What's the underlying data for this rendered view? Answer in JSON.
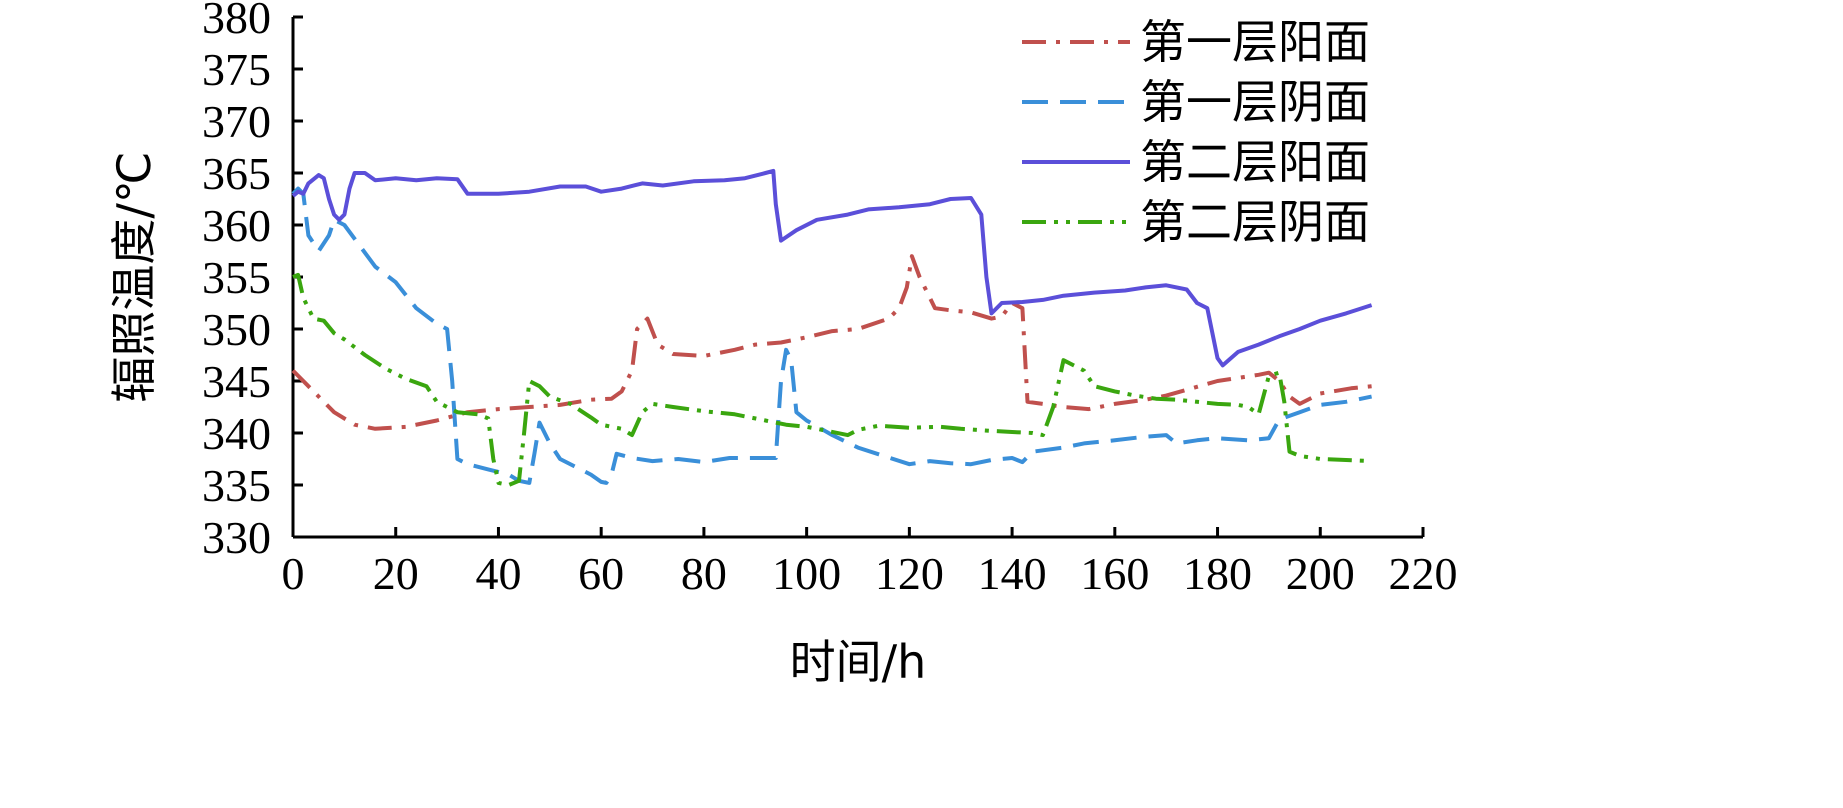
{
  "chart_data": {
    "type": "line",
    "title": "",
    "xlabel": "时间/h",
    "ylabel": "辐照温度/℃",
    "xlim": [
      0,
      220
    ],
    "ylim": [
      330,
      380
    ],
    "xticks": [
      0,
      20,
      40,
      60,
      80,
      100,
      120,
      140,
      160,
      180,
      200,
      220
    ],
    "yticks": [
      330,
      335,
      340,
      345,
      350,
      355,
      360,
      365,
      370,
      375,
      380
    ],
    "grid": false,
    "legend_position": "top-right",
    "series": [
      {
        "name": "第一层阳面",
        "color": "#c0504d",
        "dash": "dashdot",
        "points": [
          [
            0,
            346
          ],
          [
            2,
            345
          ],
          [
            5,
            343.5
          ],
          [
            8,
            342
          ],
          [
            12,
            340.8
          ],
          [
            16,
            340.4
          ],
          [
            22,
            340.6
          ],
          [
            28,
            341.2
          ],
          [
            34,
            342
          ],
          [
            40,
            342.3
          ],
          [
            46,
            342.5
          ],
          [
            52,
            342.7
          ],
          [
            58,
            343.2
          ],
          [
            62,
            343.3
          ],
          [
            64,
            344
          ],
          [
            66,
            346
          ],
          [
            67,
            350
          ],
          [
            69,
            351
          ],
          [
            71,
            348.5
          ],
          [
            74,
            347.6
          ],
          [
            80,
            347.4
          ],
          [
            86,
            348
          ],
          [
            90,
            348.5
          ],
          [
            95,
            348.7
          ],
          [
            100,
            349.2
          ],
          [
            105,
            349.8
          ],
          [
            110,
            350
          ],
          [
            116,
            351
          ],
          [
            118,
            352
          ],
          [
            119.5,
            354
          ],
          [
            120.5,
            357
          ],
          [
            122,
            355
          ],
          [
            125,
            352
          ],
          [
            128,
            351.8
          ],
          [
            132,
            351.6
          ],
          [
            136,
            351
          ],
          [
            138,
            351.2
          ],
          [
            140,
            352.5
          ],
          [
            142,
            352
          ],
          [
            143,
            343
          ],
          [
            146,
            342.8
          ],
          [
            150,
            342.5
          ],
          [
            155,
            342.3
          ],
          [
            160,
            342.8
          ],
          [
            166,
            343.2
          ],
          [
            170,
            343.6
          ],
          [
            175,
            344.3
          ],
          [
            180,
            345
          ],
          [
            184,
            345.3
          ],
          [
            188,
            345.6
          ],
          [
            190,
            345.8
          ],
          [
            192,
            345
          ],
          [
            194,
            343.5
          ],
          [
            196,
            342.8
          ],
          [
            200,
            343.8
          ],
          [
            206,
            344.3
          ],
          [
            210,
            344.5
          ]
        ]
      },
      {
        "name": "第一层阴面",
        "color": "#3a8fd9",
        "dash": "dashed",
        "points": [
          [
            0,
            363
          ],
          [
            1,
            363.5
          ],
          [
            2,
            363
          ],
          [
            3,
            359
          ],
          [
            5,
            357.5
          ],
          [
            7,
            359
          ],
          [
            8,
            360.5
          ],
          [
            10,
            360
          ],
          [
            13,
            358
          ],
          [
            16,
            356
          ],
          [
            20,
            354.5
          ],
          [
            24,
            352
          ],
          [
            28,
            350.5
          ],
          [
            30,
            350
          ],
          [
            31,
            345
          ],
          [
            32,
            337.5
          ],
          [
            34,
            337
          ],
          [
            38,
            336.5
          ],
          [
            42,
            336
          ],
          [
            44,
            335.4
          ],
          [
            46,
            335.2
          ],
          [
            47,
            338
          ],
          [
            48,
            341
          ],
          [
            50,
            339
          ],
          [
            52,
            337.5
          ],
          [
            56,
            336.5
          ],
          [
            58,
            336
          ],
          [
            60,
            335.3
          ],
          [
            61,
            335.2
          ],
          [
            62,
            336
          ],
          [
            63,
            338
          ],
          [
            66,
            337.6
          ],
          [
            70,
            337.3
          ],
          [
            75,
            337.5
          ],
          [
            80,
            337.2
          ],
          [
            85,
            337.6
          ],
          [
            90,
            337.6
          ],
          [
            94,
            337.6
          ],
          [
            95,
            345
          ],
          [
            96,
            348
          ],
          [
            97,
            347
          ],
          [
            98,
            342
          ],
          [
            100,
            341.2
          ],
          [
            105,
            339.8
          ],
          [
            110,
            338.6
          ],
          [
            115,
            337.8
          ],
          [
            120,
            337
          ],
          [
            124,
            337.3
          ],
          [
            128,
            337.1
          ],
          [
            132,
            337
          ],
          [
            136,
            337.4
          ],
          [
            140,
            337.6
          ],
          [
            142,
            337.2
          ],
          [
            144,
            338.2
          ],
          [
            150,
            338.6
          ],
          [
            154,
            339
          ],
          [
            160,
            339.3
          ],
          [
            165,
            339.6
          ],
          [
            170,
            339.8
          ],
          [
            172,
            339
          ],
          [
            176,
            339.3
          ],
          [
            180,
            339.5
          ],
          [
            186,
            339.3
          ],
          [
            190,
            339.5
          ],
          [
            192,
            341.3
          ],
          [
            196,
            342
          ],
          [
            200,
            342.7
          ],
          [
            205,
            343
          ],
          [
            210,
            343.5
          ]
        ]
      },
      {
        "name": "第二层阳面",
        "color": "#5b4fd9",
        "dash": "solid",
        "points": [
          [
            0,
            362.8
          ],
          [
            1,
            363.2
          ],
          [
            2,
            363
          ],
          [
            3,
            364
          ],
          [
            5,
            364.8
          ],
          [
            6,
            364.5
          ],
          [
            7,
            362.5
          ],
          [
            8,
            361
          ],
          [
            9,
            360.5
          ],
          [
            10,
            361
          ],
          [
            11,
            363.5
          ],
          [
            12,
            365
          ],
          [
            14,
            365
          ],
          [
            16,
            364.3
          ],
          [
            20,
            364.5
          ],
          [
            24,
            364.3
          ],
          [
            28,
            364.5
          ],
          [
            32,
            364.4
          ],
          [
            34,
            363
          ],
          [
            40,
            363
          ],
          [
            46,
            363.2
          ],
          [
            52,
            363.7
          ],
          [
            57,
            363.7
          ],
          [
            60,
            363.2
          ],
          [
            64,
            363.5
          ],
          [
            68,
            364
          ],
          [
            72,
            363.8
          ],
          [
            78,
            364.2
          ],
          [
            84,
            364.3
          ],
          [
            88,
            364.5
          ],
          [
            92,
            365
          ],
          [
            93.5,
            365.2
          ],
          [
            94,
            362
          ],
          [
            95,
            358.5
          ],
          [
            98,
            359.5
          ],
          [
            102,
            360.5
          ],
          [
            108,
            361
          ],
          [
            112,
            361.5
          ],
          [
            118,
            361.7
          ],
          [
            124,
            362
          ],
          [
            128,
            362.5
          ],
          [
            132,
            362.6
          ],
          [
            134,
            361
          ],
          [
            135,
            355
          ],
          [
            136,
            351.5
          ],
          [
            138,
            352.5
          ],
          [
            142,
            352.6
          ],
          [
            146,
            352.8
          ],
          [
            150,
            353.2
          ],
          [
            156,
            353.5
          ],
          [
            162,
            353.7
          ],
          [
            166,
            354
          ],
          [
            170,
            354.2
          ],
          [
            174,
            353.8
          ],
          [
            176,
            352.5
          ],
          [
            178,
            352
          ],
          [
            180,
            347.2
          ],
          [
            181,
            346.5
          ],
          [
            184,
            347.8
          ],
          [
            188,
            348.5
          ],
          [
            192,
            349.3
          ],
          [
            196,
            350
          ],
          [
            200,
            350.8
          ],
          [
            205,
            351.5
          ],
          [
            210,
            352.3
          ]
        ]
      },
      {
        "name": "第二层阴面",
        "color": "#3aa60f",
        "dash": "dashdotdot",
        "points": [
          [
            0,
            355
          ],
          [
            1,
            355.2
          ],
          [
            2,
            353
          ],
          [
            4,
            351
          ],
          [
            6,
            350.8
          ],
          [
            8,
            349.6
          ],
          [
            10,
            349
          ],
          [
            14,
            347.5
          ],
          [
            18,
            346.2
          ],
          [
            22,
            345.2
          ],
          [
            26,
            344.5
          ],
          [
            28,
            343
          ],
          [
            32,
            342
          ],
          [
            36,
            341.8
          ],
          [
            38,
            341.4
          ],
          [
            39,
            337.5
          ],
          [
            40,
            335.2
          ],
          [
            42,
            335
          ],
          [
            44,
            335.4
          ],
          [
            45,
            340
          ],
          [
            46,
            345
          ],
          [
            48,
            344.5
          ],
          [
            50,
            343.5
          ],
          [
            54,
            342.8
          ],
          [
            58,
            341.5
          ],
          [
            60,
            340.8
          ],
          [
            64,
            340.4
          ],
          [
            66,
            339.8
          ],
          [
            68,
            342
          ],
          [
            70,
            342.8
          ],
          [
            74,
            342.5
          ],
          [
            80,
            342.1
          ],
          [
            86,
            341.8
          ],
          [
            92,
            341.2
          ],
          [
            96,
            340.8
          ],
          [
            100,
            340.6
          ],
          [
            104,
            340.2
          ],
          [
            108,
            339.8
          ],
          [
            110,
            340.3
          ],
          [
            114,
            340.7
          ],
          [
            120,
            340.5
          ],
          [
            126,
            340.6
          ],
          [
            130,
            340.4
          ],
          [
            136,
            340.2
          ],
          [
            140,
            340.1
          ],
          [
            144,
            340
          ],
          [
            146,
            339.8
          ],
          [
            148,
            342.5
          ],
          [
            150,
            347
          ],
          [
            152,
            346.5
          ],
          [
            154,
            346
          ],
          [
            156,
            344.5
          ],
          [
            160,
            344
          ],
          [
            164,
            343.6
          ],
          [
            168,
            343.3
          ],
          [
            172,
            343.2
          ],
          [
            176,
            343
          ],
          [
            180,
            342.8
          ],
          [
            184,
            342.7
          ],
          [
            186,
            342.5
          ],
          [
            188,
            341.8
          ],
          [
            190,
            345.5
          ],
          [
            192,
            345.8
          ],
          [
            193,
            343
          ],
          [
            194,
            338.2
          ],
          [
            196,
            337.8
          ],
          [
            200,
            337.5
          ],
          [
            205,
            337.4
          ],
          [
            210,
            337.3
          ]
        ]
      }
    ]
  }
}
